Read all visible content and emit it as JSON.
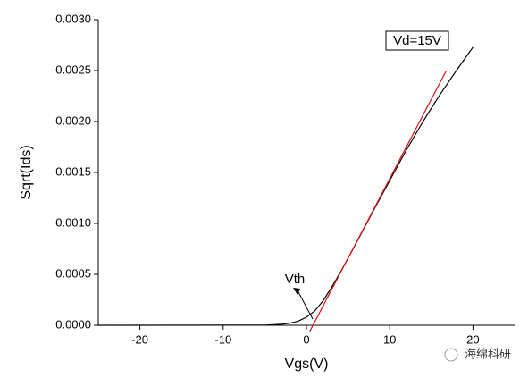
{
  "chart_data": {
    "type": "line",
    "x_label": "Vgs(V)",
    "y_label": "Sqrt(Ids)",
    "annotations": [
      "Vd=15V",
      "Vth"
    ],
    "watermark": "海绵科研",
    "xlim": [
      -25,
      25
    ],
    "xticks": [
      -20,
      -10,
      0,
      10,
      20
    ],
    "ylim": [
      0,
      0.003
    ],
    "yticks": [
      {
        "value": 0,
        "label": "0.0000"
      },
      {
        "value": 0.0005,
        "label": "0.0005"
      },
      {
        "value": 0.001,
        "label": "0.0010"
      },
      {
        "value": 0.0015,
        "label": "0.0015"
      },
      {
        "value": 0.002,
        "label": "0.0020"
      },
      {
        "value": 0.0025,
        "label": "0.0025"
      },
      {
        "value": 0.003,
        "label": "0.0030"
      }
    ],
    "series": [
      {
        "color": "#000000",
        "x": [
          -25,
          -5,
          -3,
          -2,
          -1,
          0,
          1,
          2,
          3,
          4,
          5,
          6,
          8,
          10,
          12,
          14,
          16,
          18,
          20
        ],
        "values": [
          0,
          2e-06,
          1e-05,
          2e-05,
          4e-05,
          8e-05,
          0.00014,
          0.00024,
          0.00037,
          0.00051,
          0.00066,
          0.00081,
          0.00112,
          0.00142,
          0.00172,
          0.002,
          0.00226,
          0.0025,
          0.00273
        ]
      },
      {
        "color": "#e01010",
        "x": [
          0.4,
          16.8
        ],
        "values": [
          -6e-05,
          0.0025
        ]
      }
    ]
  }
}
